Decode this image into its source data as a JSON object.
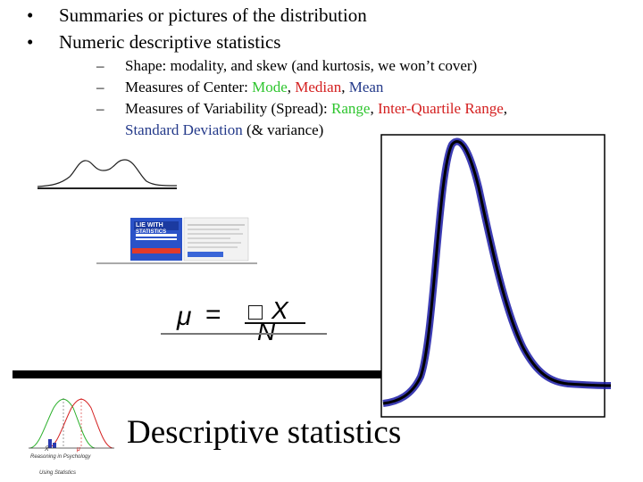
{
  "bullets": [
    {
      "text": "Summaries or pictures of the distribution"
    },
    {
      "text": "Numeric descriptive statistics"
    }
  ],
  "bullet_glyph": "•",
  "dash_glyph": "–",
  "subbullets": {
    "shape": "Shape: modality, and skew (and kurtosis, we won’t cover)",
    "center": {
      "prefix": "Measures of Center: ",
      "mode": "Mode",
      "sep1": ", ",
      "median": "Median",
      "sep2": ", ",
      "mean": "Mean"
    },
    "variability": {
      "prefix": "Measures of Variability (Spread): ",
      "range": "Range",
      "sep1": ", ",
      "iqr": "Inter-Quartile Range",
      "sep2": ",",
      "sd": "Standard Deviation",
      "suffix": " (& variance)"
    }
  },
  "book_cover": {
    "title_top": "LIE WITH",
    "title_bottom": "STATISTICS"
  },
  "formula": {
    "lhs": "μ",
    "eq": "=",
    "num": "X",
    "den": "N"
  },
  "slide_title": "Descriptive statistics",
  "thumbnail": {
    "label1": "X̄",
    "label2": "μ",
    "caption1": "Reasoning in Psychology",
    "caption2": "Using Statistics"
  },
  "colors": {
    "green": "#2ec52e",
    "red": "#d42020",
    "blue": "#243a8a",
    "curve_blue": "#1a1aa6"
  }
}
